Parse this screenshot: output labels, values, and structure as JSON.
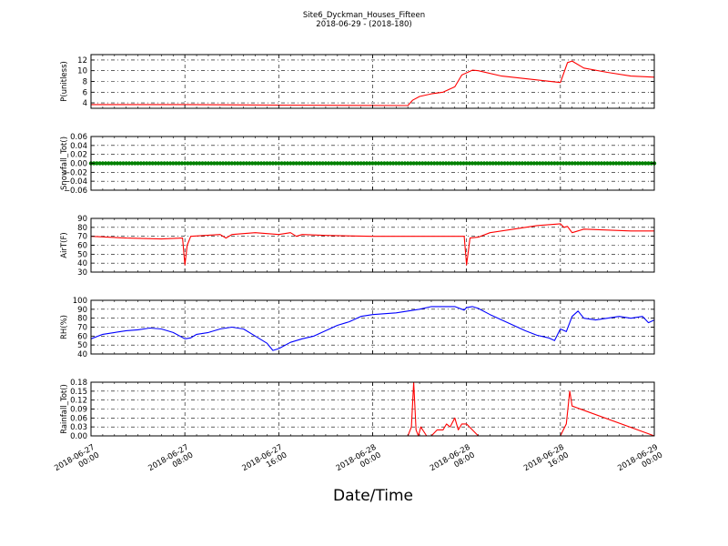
{
  "title": "Site6_Dyckman_Houses_Fifteen",
  "subtitle": "2018-06-29 - (2018-180)",
  "xlabel": "Date/Time",
  "x_ticks": [
    {
      "t": 0,
      "line1": "2018-06-27",
      "line2": "00:00"
    },
    {
      "t": 8,
      "line1": "2018-06-27",
      "line2": "08:00"
    },
    {
      "t": 16,
      "line1": "2018-06-27",
      "line2": "16:00"
    },
    {
      "t": 24,
      "line1": "2018-06-28",
      "line2": "00:00"
    },
    {
      "t": 32,
      "line1": "2018-06-28",
      "line2": "08:00"
    },
    {
      "t": 40,
      "line1": "2018-06-28",
      "line2": "16:00"
    },
    {
      "t": 48,
      "line1": "2018-06-29",
      "line2": "00:00"
    }
  ],
  "colors": {
    "red": "#ff0000",
    "green": "#008000",
    "blue": "#0000ff"
  },
  "chart_data": [
    {
      "type": "line",
      "ylabel": "P(unitless)",
      "ylim": [
        3,
        13
      ],
      "yticks": [
        "4",
        "6",
        "8",
        "10",
        "12"
      ],
      "ytick_values": [
        4,
        6,
        8,
        10,
        12
      ],
      "grid": true,
      "series": [
        {
          "color": "red",
          "x": [
            0,
            8,
            16,
            27,
            27.4,
            28,
            29,
            30,
            31,
            31.6,
            32.5,
            33,
            35,
            40,
            40.2,
            40.6,
            41,
            42,
            44,
            46,
            48
          ],
          "y": [
            3.7,
            3.7,
            3.6,
            3.5,
            4.5,
            5.2,
            5.7,
            6.0,
            7.0,
            9.2,
            10.1,
            10.0,
            9.0,
            7.8,
            9.0,
            11.5,
            11.8,
            10.5,
            9.7,
            9.0,
            8.8
          ]
        }
      ]
    },
    {
      "type": "scatter",
      "ylabel": "Snowfall_Tot()",
      "ylim": [
        -0.06,
        0.06
      ],
      "yticks": [
        "−0.06",
        "−0.04",
        "−0.02",
        "0.00",
        "0.02",
        "0.04",
        "0.06"
      ],
      "ytick_values": [
        -0.06,
        -0.04,
        -0.02,
        0.0,
        0.02,
        0.04,
        0.06
      ],
      "grid": true,
      "series": [
        {
          "color": "green",
          "x_range": [
            0,
            48
          ],
          "step_hours": 0.25,
          "value": 0.0
        }
      ]
    },
    {
      "type": "line",
      "ylabel": "AirT(F)",
      "ylim": [
        30,
        90
      ],
      "yticks": [
        "30",
        "40",
        "50",
        "60",
        "70",
        "80",
        "90"
      ],
      "ytick_values": [
        30,
        40,
        50,
        60,
        70,
        80,
        90
      ],
      "grid": true,
      "series": [
        {
          "color": "red",
          "x": [
            0,
            3,
            6,
            7.8,
            8.0,
            8.2,
            8.5,
            11,
            11.5,
            12,
            14,
            16,
            17,
            17.5,
            18,
            20,
            24,
            28,
            31.8,
            32,
            32.3,
            33,
            34,
            36,
            38,
            40,
            40.3,
            40.6,
            41,
            42,
            44,
            46,
            48
          ],
          "y": [
            70,
            68,
            67,
            68,
            38,
            60,
            70,
            72,
            68,
            72,
            74,
            72,
            74,
            70,
            72,
            71,
            70,
            70,
            70,
            38,
            68,
            69,
            74,
            78,
            82,
            84,
            80,
            81,
            74,
            78,
            77,
            76,
            76
          ]
        }
      ]
    },
    {
      "type": "line",
      "ylabel": "RH(%)",
      "ylim": [
        40,
        100
      ],
      "yticks": [
        "40",
        "50",
        "60",
        "70",
        "80",
        "90",
        "100"
      ],
      "ytick_values": [
        40,
        50,
        60,
        70,
        80,
        90,
        100
      ],
      "grid": true,
      "series": [
        {
          "color": "blue",
          "x": [
            0,
            1,
            2,
            3,
            4,
            5,
            6,
            7,
            8,
            8.5,
            9,
            10,
            11,
            12,
            13,
            14,
            15,
            15.5,
            16,
            17,
            18,
            19,
            20,
            21,
            22,
            23,
            24,
            26,
            27,
            28,
            29,
            31,
            31.8,
            32,
            32.5,
            33,
            34,
            35,
            36,
            37,
            38,
            39,
            39.5,
            40,
            40.5,
            41,
            41.5,
            42,
            43,
            44,
            45,
            46,
            47,
            47.5,
            48
          ],
          "y": [
            57,
            62,
            64,
            66,
            67,
            69,
            68,
            64,
            57,
            58,
            62,
            64,
            68,
            70,
            68,
            60,
            52,
            44,
            46,
            53,
            57,
            60,
            66,
            72,
            76,
            82,
            84,
            86,
            88,
            90,
            93,
            93,
            89,
            92,
            93,
            91,
            84,
            78,
            72,
            66,
            61,
            58,
            55,
            68,
            65,
            82,
            88,
            80,
            78,
            80,
            82,
            80,
            82,
            75,
            78
          ]
        }
      ]
    },
    {
      "type": "line",
      "ylabel": "Rainfall_Tot()",
      "ylim": [
        0,
        0.18
      ],
      "yticks": [
        "0.00",
        "0.03",
        "0.06",
        "0.09",
        "0.12",
        "0.15",
        "0.18"
      ],
      "ytick_values": [
        0,
        0.03,
        0.06,
        0.09,
        0.12,
        0.15,
        0.18
      ],
      "grid": true,
      "series": [
        {
          "color": "red",
          "x": [
            0,
            27,
            27.3,
            27.5,
            27.7,
            27.9,
            28.1,
            28.6,
            29,
            29.5,
            30,
            30.3,
            30.6,
            31,
            31.3,
            31.6,
            32,
            32.5,
            33,
            40,
            40.5,
            40.8,
            41,
            48
          ],
          "y": [
            0,
            0,
            0.03,
            0.18,
            0.02,
            0.0,
            0.03,
            0.0,
            0.0,
            0.02,
            0.02,
            0.04,
            0.03,
            0.06,
            0.02,
            0.04,
            0.04,
            0.02,
            0,
            0,
            0.04,
            0.15,
            0.1,
            0
          ]
        }
      ]
    }
  ]
}
